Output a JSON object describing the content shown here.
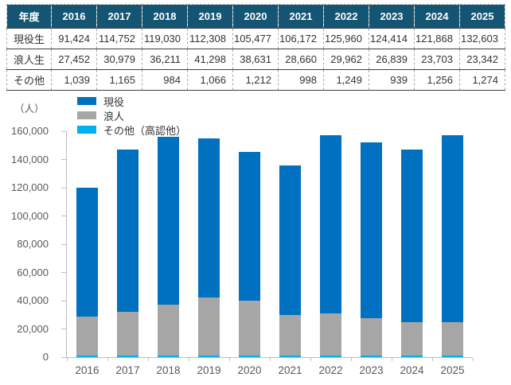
{
  "table": {
    "corner_label": "年度",
    "years": [
      "2016",
      "2017",
      "2018",
      "2019",
      "2020",
      "2021",
      "2022",
      "2023",
      "2024",
      "2025"
    ],
    "rows": [
      {
        "label": "現役生",
        "values": [
          "91,424",
          "114,752",
          "119,030",
          "112,308",
          "105,477",
          "106,172",
          "125,960",
          "124,414",
          "121,868",
          "132,603"
        ]
      },
      {
        "label": "浪人生",
        "values": [
          "27,452",
          "30,979",
          "36,211",
          "41,298",
          "38,631",
          "28,660",
          "29,962",
          "26,839",
          "23,703",
          "23,342"
        ]
      },
      {
        "label": "その他",
        "values": [
          "1,039",
          "1,165",
          "984",
          "1,066",
          "1,212",
          "998",
          "1,249",
          "939",
          "1,256",
          "1,274"
        ]
      }
    ]
  },
  "chart_data": {
    "type": "bar",
    "stacked": true,
    "unit_label": "（人）",
    "categories": [
      "2016",
      "2017",
      "2018",
      "2019",
      "2020",
      "2021",
      "2022",
      "2023",
      "2024",
      "2025"
    ],
    "series": [
      {
        "name": "現役",
        "color": "#0070C0",
        "values": [
          91424,
          114752,
          119030,
          112308,
          105477,
          106172,
          125960,
          124414,
          121868,
          132603
        ]
      },
      {
        "name": "浪人",
        "color": "#A6A6A6",
        "values": [
          27452,
          30979,
          36211,
          41298,
          38631,
          28660,
          29962,
          26839,
          23703,
          23342
        ]
      },
      {
        "name": "その他（高認他）",
        "color": "#00B0F0",
        "values": [
          1039,
          1165,
          984,
          1066,
          1212,
          998,
          1249,
          939,
          1256,
          1274
        ]
      }
    ],
    "stack_order_bottom_to_top": [
      "その他（高認他）",
      "浪人",
      "現役"
    ],
    "ylim": [
      0,
      160000
    ],
    "ytick_step": 20000,
    "ytick_labels": [
      "0",
      "20,000",
      "40,000",
      "60,000",
      "80,000",
      "100,000",
      "120,000",
      "140,000",
      "160,000"
    ],
    "grid": false,
    "legend_position": "top-left"
  },
  "colors": {
    "table_header_bg": "#145573",
    "table_header_text": "#FFFFFF",
    "bar_blue": "#0070C0",
    "bar_gray": "#A6A6A6",
    "bar_cyan": "#00B0F0",
    "axis_text": "#595959",
    "axis_line": "#BFBFBF",
    "table_text": "#333333"
  }
}
